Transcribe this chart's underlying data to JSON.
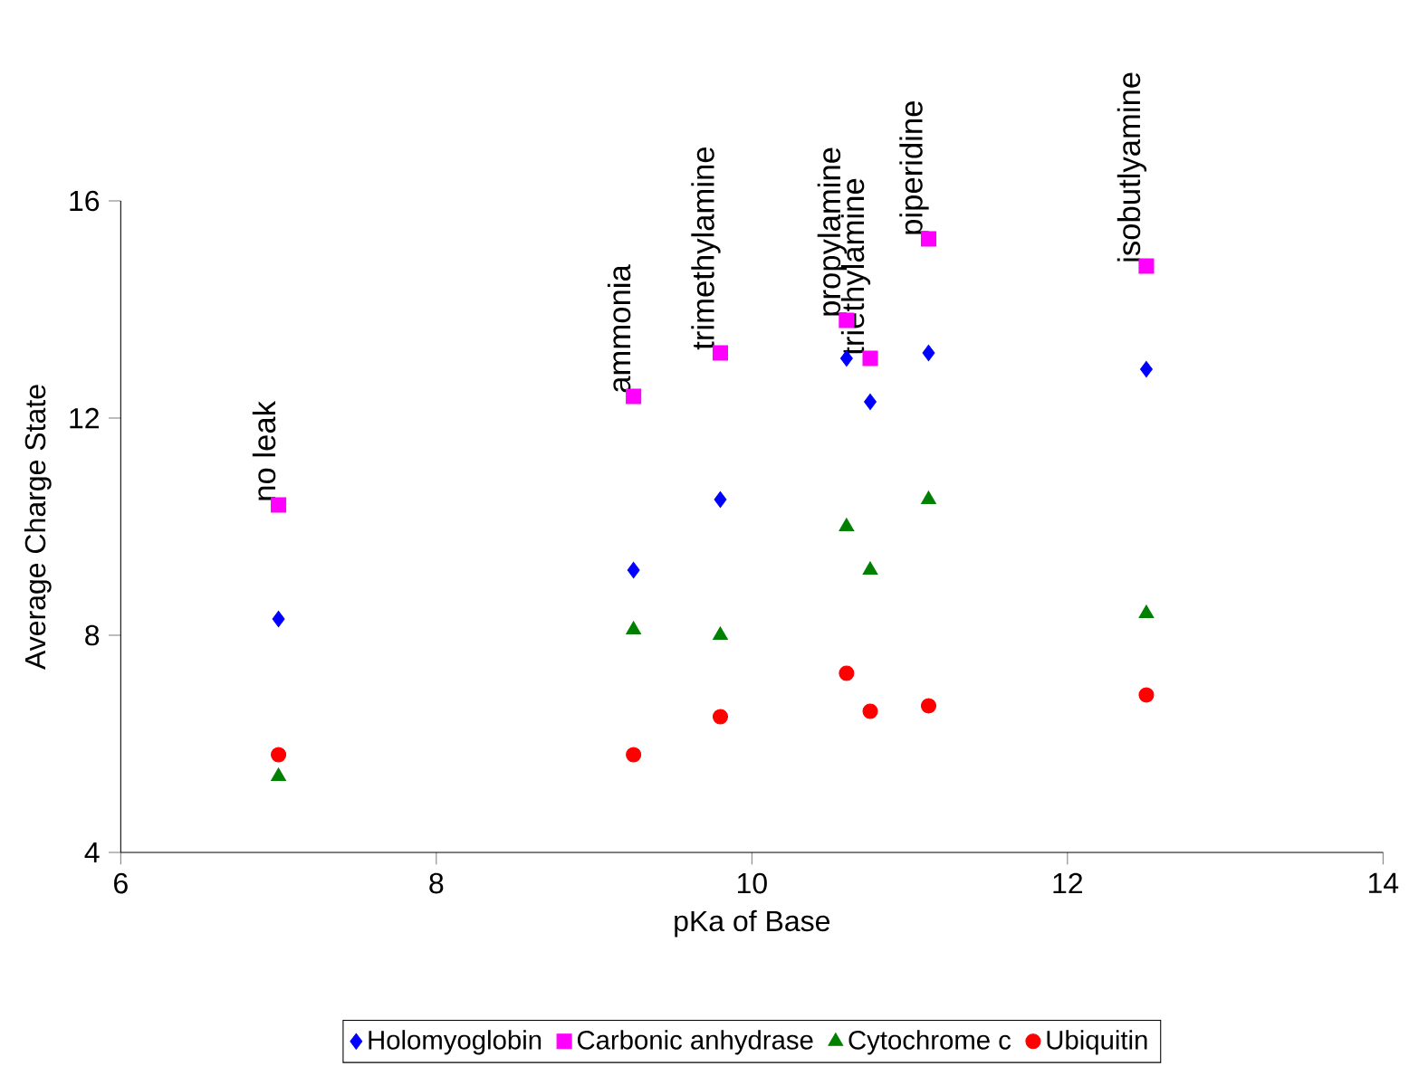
{
  "chart_data": {
    "type": "scatter",
    "xlabel": "pKa of Base",
    "ylabel": "Average Charge State",
    "x": [
      7.0,
      9.25,
      9.8,
      10.6,
      10.75,
      11.12,
      12.5
    ],
    "series": [
      {
        "name": "Holomyoglobin",
        "color": "#0000ff",
        "marker": "diamond",
        "values": [
          8.3,
          9.2,
          10.5,
          13.1,
          12.3,
          13.2,
          12.9
        ]
      },
      {
        "name": "Carbonic anhydrase",
        "color": "#ff00ff",
        "marker": "square",
        "values": [
          10.4,
          12.4,
          13.2,
          13.8,
          13.1,
          15.3,
          14.8
        ]
      },
      {
        "name": "Cytochrome c",
        "color": "#008000",
        "marker": "triangle",
        "values": [
          5.4,
          8.1,
          8.0,
          10.0,
          9.2,
          10.5,
          8.4
        ]
      },
      {
        "name": "Ubiquitin",
        "color": "#ff0000",
        "marker": "circle",
        "values": [
          5.8,
          5.8,
          6.5,
          7.3,
          6.6,
          6.7,
          6.9
        ]
      }
    ],
    "annotations": [
      {
        "text": "no leak",
        "x": 7.0,
        "y": 10.4
      },
      {
        "text": "ammonia",
        "x": 9.25,
        "y": 12.4
      },
      {
        "text": "trimethylamine",
        "x": 9.8,
        "y": 13.2
      },
      {
        "text": "propylamine",
        "x": 10.6,
        "y": 13.8
      },
      {
        "text": "triethylamine",
        "x": 10.75,
        "y": 13.1
      },
      {
        "text": "piperidine",
        "x": 11.12,
        "y": 15.3
      },
      {
        "text": "isobutlyamine",
        "x": 12.5,
        "y": 14.8
      }
    ],
    "xlim": [
      6,
      14
    ],
    "xticks": [
      6,
      8,
      10,
      12,
      14
    ],
    "ylim": [
      4,
      16
    ],
    "yticks": [
      4,
      8,
      12,
      16
    ],
    "grid": false,
    "legend": "bottom"
  }
}
